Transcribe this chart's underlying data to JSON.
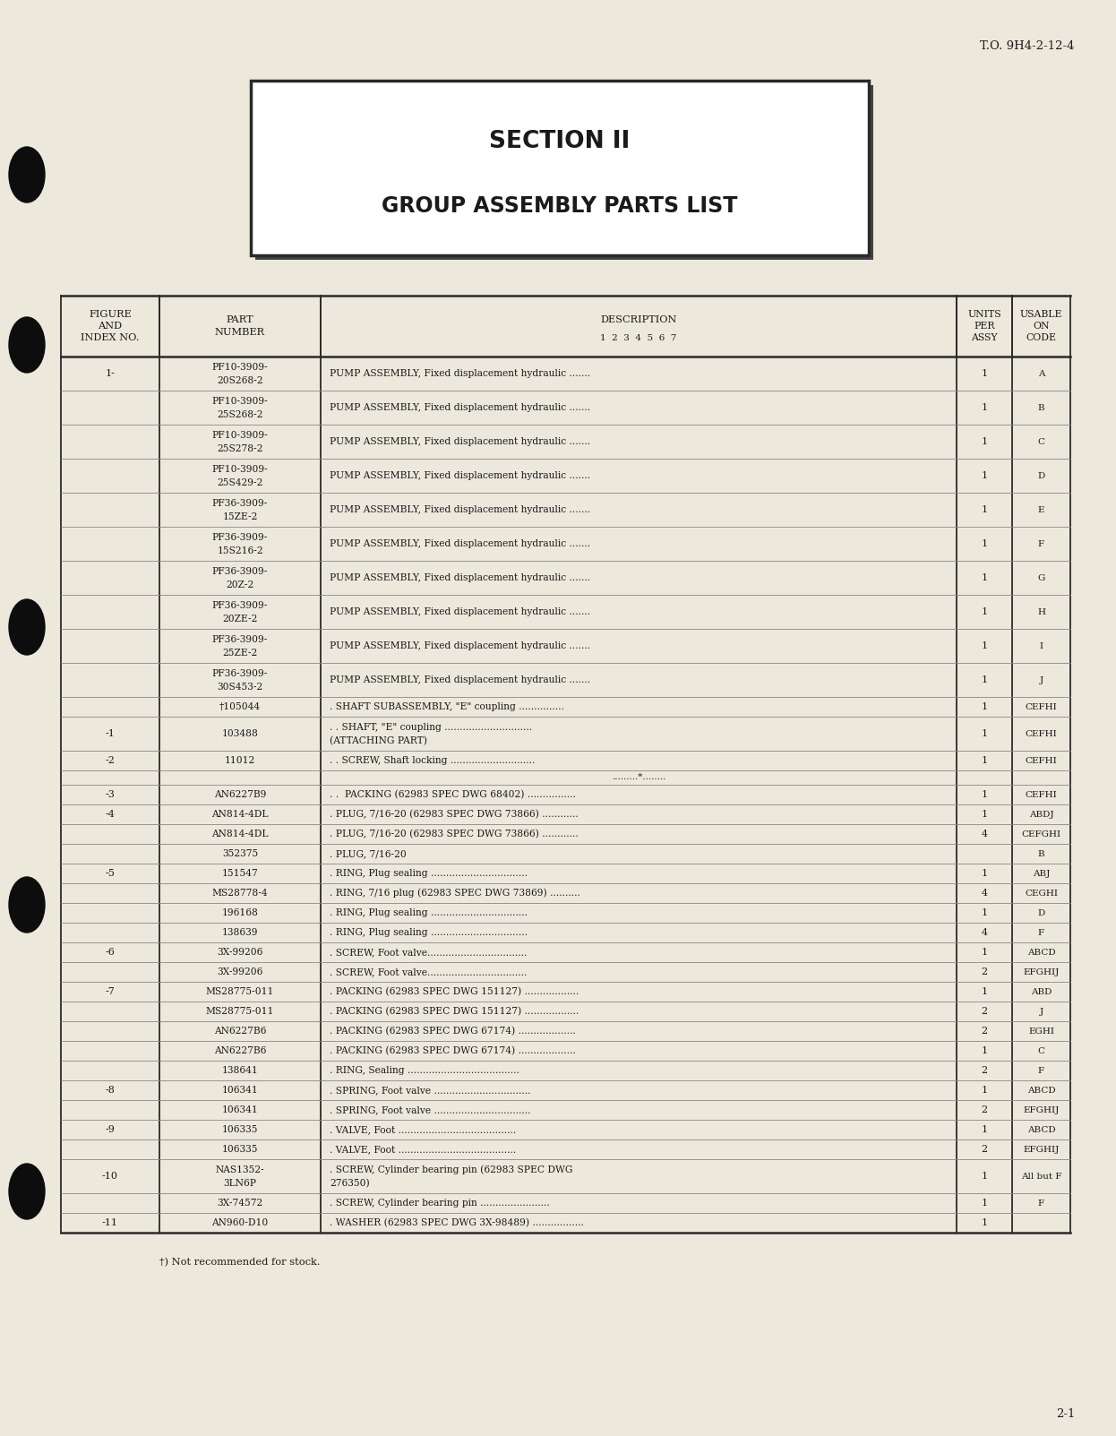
{
  "page_bg": "#ece8dc",
  "to_number": "T.O. 9H4-2-12-4",
  "page_number": "2-1",
  "section_title_line1": "SECTION II",
  "section_title_line2": "GROUP ASSEMBLY PARTS LIST",
  "footer_note": "†) Not recommended for stock.",
  "col_headers": {
    "figure": "FIGURE\nAND\nINDEX NO.",
    "part": "PART\nNUMBER",
    "desc1": "DESCRIPTION",
    "desc2": "1  2  3  4  5  6  7",
    "units": "UNITS\nPER\nASSY",
    "usable": "USABLE\nON\nCODE"
  },
  "table_rows": [
    {
      "fig": "1-",
      "part": "PF10-3909-\n20S268-2",
      "desc": "PUMP ASSEMBLY, Fixed displacement hydraulic .......",
      "units": "1",
      "code": "A"
    },
    {
      "fig": "",
      "part": "PF10-3909-\n25S268-2",
      "desc": "PUMP ASSEMBLY, Fixed displacement hydraulic .......",
      "units": "1",
      "code": "B"
    },
    {
      "fig": "",
      "part": "PF10-3909-\n25S278-2",
      "desc": "PUMP ASSEMBLY, Fixed displacement hydraulic .......",
      "units": "1",
      "code": "C"
    },
    {
      "fig": "",
      "part": "PF10-3909-\n25S429-2",
      "desc": "PUMP ASSEMBLY, Fixed displacement hydraulic .......",
      "units": "1",
      "code": "D"
    },
    {
      "fig": "",
      "part": "PF36-3909-\n15ZE-2",
      "desc": "PUMP ASSEMBLY, Fixed displacement hydraulic .......",
      "units": "1",
      "code": "E"
    },
    {
      "fig": "",
      "part": "PF36-3909-\n15S216-2",
      "desc": "PUMP ASSEMBLY, Fixed displacement hydraulic .......",
      "units": "1",
      "code": "F"
    },
    {
      "fig": "",
      "part": "PF36-3909-\n20Z-2",
      "desc": "PUMP ASSEMBLY, Fixed displacement hydraulic .......",
      "units": "1",
      "code": "G"
    },
    {
      "fig": "",
      "part": "PF36-3909-\n20ZE-2",
      "desc": "PUMP ASSEMBLY, Fixed displacement hydraulic .......",
      "units": "1",
      "code": "H"
    },
    {
      "fig": "",
      "part": "PF36-3909-\n25ZE-2",
      "desc": "PUMP ASSEMBLY, Fixed displacement hydraulic .......",
      "units": "1",
      "code": "I"
    },
    {
      "fig": "",
      "part": "PF36-3909-\n30S453-2",
      "desc": "PUMP ASSEMBLY, Fixed displacement hydraulic .......",
      "units": "1",
      "code": "J"
    },
    {
      "fig": "",
      "part": "†105044",
      "desc": ". SHAFT SUBASSEMBLY, \"E\" coupling ...............",
      "units": "1",
      "code": "CEFHI"
    },
    {
      "fig": "-1",
      "part": "103488",
      "desc": ". . SHAFT, \"E\" coupling .............................\n(ATTACHING PART)",
      "units": "1",
      "code": "CEFHI"
    },
    {
      "fig": "-2",
      "part": "11012",
      "desc": ". . SCREW, Shaft locking ............................",
      "units": "1",
      "code": "CEFHI"
    },
    {
      "fig": "",
      "part": "",
      "desc": ".........*........",
      "units": "",
      "code": ""
    },
    {
      "fig": "-3",
      "part": "AN6227B9",
      "desc": ". .  PACKING (62983 SPEC DWG 68402) ................",
      "units": "1",
      "code": "CEFHI"
    },
    {
      "fig": "-4",
      "part": "AN814-4DL",
      "desc": ". PLUG, 7/16-20 (62983 SPEC DWG 73866) ............",
      "units": "1",
      "code": "ABDJ"
    },
    {
      "fig": "",
      "part": "AN814-4DL",
      "desc": ". PLUG, 7/16-20 (62983 SPEC DWG 73866) ............",
      "units": "4",
      "code": "CEFGHI"
    },
    {
      "fig": "",
      "part": "352375",
      "desc": ". PLUG, 7/16-20",
      "units": "",
      "code": "B"
    },
    {
      "fig": "-5",
      "part": "151547",
      "desc": ". RING, Plug sealing ................................",
      "units": "1",
      "code": "ABJ"
    },
    {
      "fig": "",
      "part": "MS28778-4",
      "desc": ". RING, 7/16 plug (62983 SPEC DWG 73869) ..........",
      "units": "4",
      "code": "CEGHI"
    },
    {
      "fig": "",
      "part": "196168",
      "desc": ". RING, Plug sealing ................................",
      "units": "1",
      "code": "D"
    },
    {
      "fig": "",
      "part": "138639",
      "desc": ". RING, Plug sealing ................................",
      "units": "4",
      "code": "F"
    },
    {
      "fig": "-6",
      "part": "3X-99206",
      "desc": ". SCREW, Foot valve.................................",
      "units": "1",
      "code": "ABCD"
    },
    {
      "fig": "",
      "part": "3X-99206",
      "desc": ". SCREW, Foot valve.................................",
      "units": "2",
      "code": "EFGHIJ"
    },
    {
      "fig": "-7",
      "part": "MS28775-011",
      "desc": ". PACKING (62983 SPEC DWG 151127) ..................",
      "units": "1",
      "code": "ABD"
    },
    {
      "fig": "",
      "part": "MS28775-011",
      "desc": ". PACKING (62983 SPEC DWG 151127) ..................",
      "units": "2",
      "code": "J"
    },
    {
      "fig": "",
      "part": "AN6227B6",
      "desc": ". PACKING (62983 SPEC DWG 67174) ...................",
      "units": "2",
      "code": "EGHI"
    },
    {
      "fig": "",
      "part": "AN6227B6",
      "desc": ". PACKING (62983 SPEC DWG 67174) ...................",
      "units": "1",
      "code": "C"
    },
    {
      "fig": "",
      "part": "138641",
      "desc": ". RING, Sealing .....................................",
      "units": "2",
      "code": "F"
    },
    {
      "fig": "-8",
      "part": "106341",
      "desc": ". SPRING, Foot valve ................................",
      "units": "1",
      "code": "ABCD"
    },
    {
      "fig": "",
      "part": "106341",
      "desc": ". SPRING, Foot valve ................................",
      "units": "2",
      "code": "EFGHIJ"
    },
    {
      "fig": "-9",
      "part": "106335",
      "desc": ". VALVE, Foot .......................................",
      "units": "1",
      "code": "ABCD"
    },
    {
      "fig": "",
      "part": "106335",
      "desc": ". VALVE, Foot .......................................",
      "units": "2",
      "code": "EFGHIJ"
    },
    {
      "fig": "-10",
      "part": "NAS1352-\n3LN6P",
      "desc": ". SCREW, Cylinder bearing pin (62983 SPEC DWG\n276350)",
      "units": "1",
      "code": "All but F"
    },
    {
      "fig": "",
      "part": "3X-74572",
      "desc": ". SCREW, Cylinder bearing pin .......................",
      "units": "1",
      "code": "F"
    },
    {
      "fig": "-11",
      "part": "AN960-D10",
      "desc": ". WASHER (62983 SPEC DWG 3X-98489) .................",
      "units": "1",
      "code": ""
    }
  ]
}
